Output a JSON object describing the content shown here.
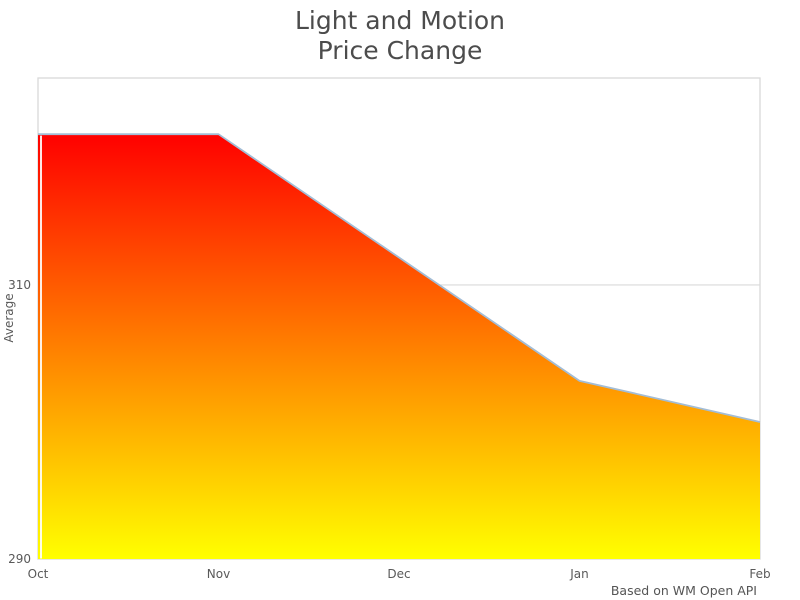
{
  "title": {
    "line1": "Light and Motion",
    "line2": "Price Change"
  },
  "y_axis": {
    "label": "Average"
  },
  "footer": {
    "caption": "Based on WM Open API"
  },
  "chart_data": {
    "type": "area",
    "title": "Light and Motion Price Change",
    "categories": [
      "Oct",
      "Nov",
      "Dec",
      "Jan",
      "Feb"
    ],
    "series": [
      {
        "name": "Average",
        "values": [
          321,
          321,
          312,
          303,
          300
        ]
      }
    ],
    "xlabel": "",
    "ylabel": "Average",
    "ylim": [
      290,
      325.1
    ],
    "yticks": [
      290,
      310
    ],
    "grid": "horizontal",
    "legend": "none",
    "colors": {
      "line": "#a3bdd6",
      "gradient_top": "#ff0000",
      "gradient_bottom": "#ffff00",
      "plot_border": "#d9d9d9",
      "tick_text": "#595959",
      "title_text": "#4c4c4c"
    }
  }
}
